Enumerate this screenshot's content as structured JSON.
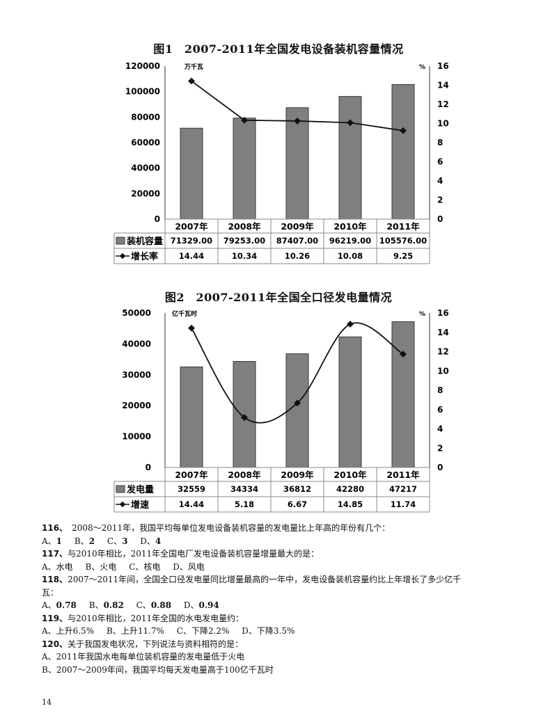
{
  "chart_data": [
    {
      "type": "bar+line",
      "title": "图1　2007-2011年全国发电设备装机容量情况",
      "categories": [
        "2007年",
        "2008年",
        "2009年",
        "2010年",
        "2011年"
      ],
      "y_left_label": "万千瓦",
      "y_right_label": "%",
      "y_left_ticks": [
        "120000",
        "100000",
        "80000",
        "60000",
        "40000",
        "20000",
        "0"
      ],
      "y_right_ticks": [
        "16",
        "14",
        "12",
        "10",
        "8",
        "6",
        "4",
        "2",
        "0"
      ],
      "ylim_left": [
        0,
        120000
      ],
      "ylim_right": [
        0,
        16
      ],
      "line_style": "straight",
      "series": [
        {
          "name": "装机容量",
          "kind": "bar",
          "axis": "left",
          "values": [
            71329,
            79253,
            87407,
            96219,
            105576
          ],
          "labels": [
            "71329.00",
            "79253.00",
            "87407.00",
            "96219.00",
            "105576.00"
          ]
        },
        {
          "name": "增长率",
          "kind": "line",
          "axis": "right",
          "values": [
            14.44,
            10.34,
            10.26,
            10.08,
            9.25
          ],
          "labels": [
            "14.44",
            "10.34",
            "10.26",
            "10.08",
            "9.25"
          ]
        }
      ],
      "grid": false,
      "legend": "data-table"
    },
    {
      "type": "bar+line",
      "title": "图2　2007-2011年全国全口径发电量情况",
      "categories": [
        "2007年",
        "2008年",
        "2009年",
        "2010年",
        "2011年"
      ],
      "y_left_label": "亿千瓦时",
      "y_right_label": "%",
      "y_left_ticks": [
        "50000",
        "40000",
        "30000",
        "20000",
        "10000",
        "0"
      ],
      "y_right_ticks": [
        "16",
        "14",
        "12",
        "10",
        "8",
        "6",
        "4",
        "2",
        "0"
      ],
      "ylim_left": [
        0,
        50000
      ],
      "ylim_right": [
        0,
        16
      ],
      "line_style": "smooth",
      "series": [
        {
          "name": "发电量",
          "kind": "bar",
          "axis": "left",
          "values": [
            32559,
            34334,
            36812,
            42280,
            47217
          ],
          "labels": [
            "32559",
            "34334",
            "36812",
            "42280",
            "47217"
          ]
        },
        {
          "name": "增速",
          "kind": "line",
          "axis": "right",
          "values": [
            14.44,
            5.18,
            6.67,
            14.85,
            11.74
          ],
          "labels": [
            "14.44",
            "5.18",
            "6.67",
            "14.85",
            "11.74"
          ]
        }
      ],
      "grid": false,
      "legend": "data-table"
    }
  ],
  "colors": {
    "bar": "#7f7f7f",
    "bar_edge": "#3a3a3a",
    "line": "#111111",
    "axis": "#333333",
    "table_border": "#888888"
  },
  "questions": [
    {
      "num": "116、",
      "text": "　2008～2011年，我国平均每单位发电设备装机容量的发电量比上年高的年份有几个：",
      "options": [
        {
          "key": "A、",
          "val": "1"
        },
        {
          "key": "B、",
          "val": "2"
        },
        {
          "key": "C、",
          "val": "3"
        },
        {
          "key": "D、",
          "val": "4"
        }
      ]
    },
    {
      "num": "117、",
      "text": "与2010年相比，2011年全国电厂发电设备装机容量增量最大的是：",
      "options": [
        {
          "key": "A、",
          "val": "水电"
        },
        {
          "key": "B、",
          "val": "火电"
        },
        {
          "key": "C、",
          "val": "核电"
        },
        {
          "key": "D、",
          "val": "风电"
        }
      ]
    },
    {
      "num": "118、",
      "text": "2007～2011年间，全国全口径发电量同比增量最高的一年中，发电设备装机容量约比上年增长了多少亿千",
      "text_cont": "瓦：",
      "options": [
        {
          "key": "A、",
          "val": "0.78"
        },
        {
          "key": "B、",
          "val": "0.82"
        },
        {
          "key": "C、",
          "val": "0.88"
        },
        {
          "key": "D、",
          "val": "0.94"
        }
      ]
    },
    {
      "num": "119、",
      "text": "与2010年相比，2011年全国的水电发电量约：",
      "options": [
        {
          "key": "A、",
          "val": "上升6.5%"
        },
        {
          "key": "B、",
          "val": "上升11.7%"
        },
        {
          "key": "C、",
          "val": "下降2.2%"
        },
        {
          "key": "D、",
          "val": "下降3.5%"
        }
      ]
    },
    {
      "num": "120、",
      "text": "关于我国发电状况，下列说法与资料相符的是：",
      "statements": [
        "A、2011年我国水电每单位装机容量的发电量低于火电",
        "B、2007～2009年间，我国平均每天发电量高于100亿千瓦时"
      ]
    }
  ],
  "page_number": "14"
}
